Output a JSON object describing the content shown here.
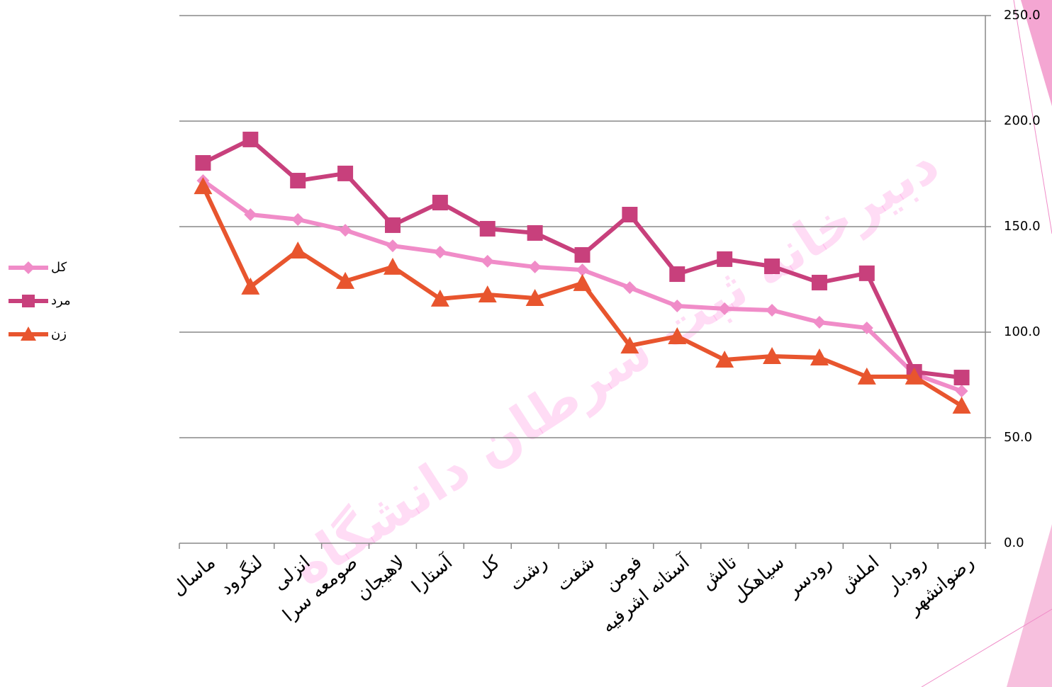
{
  "chart_data": {
    "type": "line",
    "watermark": "دبیرخانه ثبت سرطان دانشگاه",
    "categories": [
      "ماسال",
      "لنگرود",
      "انزلی",
      "صومعه سرا",
      "لاهیجان",
      "آستارا",
      "کل",
      "رشت",
      "شفت",
      "فومن",
      "آستانه اشرفیه",
      "تالش",
      "سیاهکل",
      "رودسر",
      "املش",
      "رودبار",
      "رضوانشهر"
    ],
    "series": [
      {
        "name": "کل",
        "color": "#f08cc8",
        "marker": "diamond",
        "values": [
          171.8,
          155.7,
          153.4,
          148.3,
          140.9,
          137.9,
          133.6,
          130.9,
          129.5,
          121.1,
          112.4,
          111.1,
          110.4,
          104.7,
          102.0,
          80.2,
          72.1
        ]
      },
      {
        "name": "مرد",
        "color": "#c8407c",
        "marker": "square",
        "values": [
          180.2,
          191.3,
          171.8,
          175.2,
          150.7,
          161.4,
          149.0,
          147.0,
          136.6,
          155.7,
          127.5,
          134.6,
          131.2,
          123.5,
          127.9,
          81.2,
          78.5
        ]
      },
      {
        "name": "زن",
        "color": "#e8552e",
        "marker": "triangle",
        "values": [
          169.1,
          121.5,
          138.6,
          124.2,
          130.9,
          115.8,
          117.8,
          116.1,
          123.2,
          93.6,
          98.0,
          86.9,
          88.6,
          87.9,
          78.9,
          78.9,
          65.1
        ]
      }
    ],
    "ylim": [
      0,
      250
    ],
    "yticks": [
      {
        "value": 0,
        "label": "0.0"
      },
      {
        "value": 50,
        "label": "50.0"
      },
      {
        "value": 100,
        "label": "100.0"
      },
      {
        "value": 150,
        "label": "150.0"
      },
      {
        "value": 200,
        "label": "200.0"
      },
      {
        "value": 250,
        "label": "250.0"
      }
    ],
    "grid": true,
    "legend": "left"
  }
}
